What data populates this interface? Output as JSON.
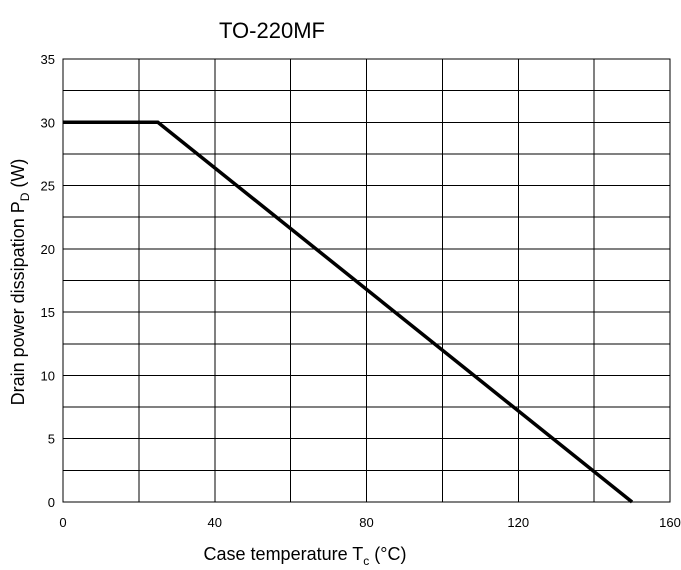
{
  "chart_data": {
    "type": "line",
    "title": "TO-220MF",
    "xlabel": {
      "main": "Case temperature T",
      "sub": "c",
      "unit": " (°C)"
    },
    "ylabel": {
      "main": "Drain power dissipation P",
      "sub": "D",
      "unit": " (W)"
    },
    "xlim": [
      0,
      160
    ],
    "ylim": [
      0,
      35
    ],
    "x_ticks": [
      0,
      40,
      80,
      120,
      160
    ],
    "y_ticks": [
      0,
      5,
      10,
      15,
      20,
      25,
      30,
      35
    ],
    "x_tick_labels": [
      "0",
      "40",
      "80",
      "120",
      "160"
    ],
    "y_tick_labels": [
      "0",
      "5",
      "10",
      "15",
      "20",
      "25",
      "30",
      "35"
    ],
    "grid": true,
    "x_grid_step": 20,
    "y_grid_step": 2.5,
    "series": [
      {
        "points": [
          {
            "x": 0,
            "y": 30
          },
          {
            "x": 25,
            "y": 30
          },
          {
            "x": 150,
            "y": 0
          }
        ]
      }
    ]
  }
}
